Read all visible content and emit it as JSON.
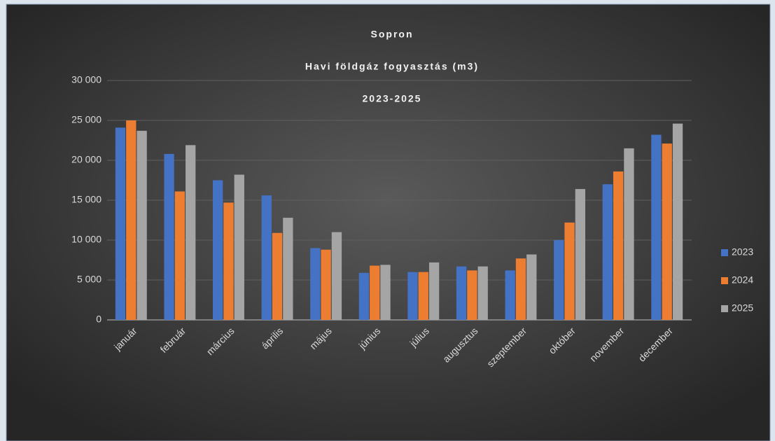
{
  "chart_data": {
    "type": "bar",
    "title": [
      "Sopron",
      "Havi földgáz fogyasztás (m3)",
      "2023-2025"
    ],
    "categories": [
      "január",
      "február",
      "március",
      "április",
      "május",
      "június",
      "július",
      "augusztus",
      "szeptember",
      "október",
      "november",
      "december"
    ],
    "series": [
      {
        "name": "2023",
        "color": "#4472c4",
        "values": [
          24100,
          20800,
          17500,
          15600,
          9000,
          5900,
          6000,
          6700,
          6200,
          10000,
          17000,
          23200
        ]
      },
      {
        "name": "2024",
        "color": "#ed7d31",
        "values": [
          25000,
          16100,
          14700,
          10900,
          8800,
          6800,
          6000,
          6200,
          7700,
          12200,
          18600,
          22100
        ]
      },
      {
        "name": "2025",
        "color": "#a5a5a5",
        "values": [
          23700,
          21900,
          18200,
          12800,
          11000,
          6900,
          7200,
          6700,
          8200,
          16400,
          21500,
          24600
        ]
      }
    ],
    "ylim": [
      0,
      30000
    ],
    "yticks": [
      0,
      {
        "value": 5000,
        "label": "5 000"
      },
      {
        "value": 10000,
        "label": "10 000"
      },
      {
        "value": 15000,
        "label": "15 000"
      },
      {
        "value": 20000,
        "label": "20 000"
      },
      {
        "value": 25000,
        "label": "25 000"
      },
      {
        "value": 30000,
        "label": "30 000"
      }
    ],
    "grid": true,
    "legend": "right"
  }
}
